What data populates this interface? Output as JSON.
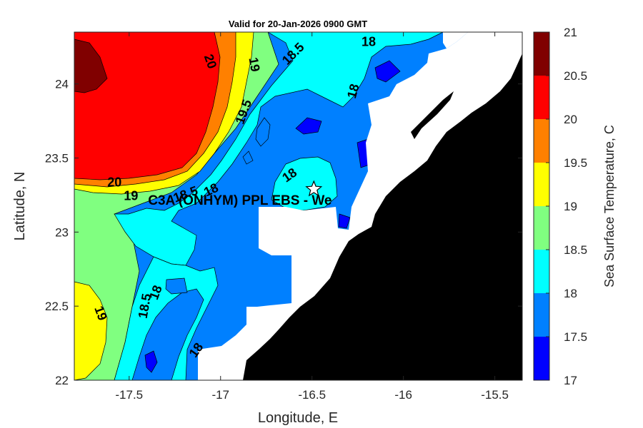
{
  "title": "Valid for 20-Jan-2026 0900 GMT",
  "xlabel": "Longitude, E",
  "ylabel": "Latitude, N",
  "colorbar_label": "Sea Surface Temperature, C",
  "station_label": "C3A (ONHYM) PPL EBS  - We",
  "chart_data": {
    "type": "contour-map",
    "title": "Valid for 20-Jan-2026 0900 GMT",
    "xlim": [
      -17.8,
      -15.35
    ],
    "ylim": [
      22,
      24.35
    ],
    "x_ticks": [
      {
        "v": -17.5,
        "t": "-17.5"
      },
      {
        "v": -17,
        "t": "-17"
      },
      {
        "v": -16.5,
        "t": "-16.5"
      },
      {
        "v": -16,
        "t": "-16"
      },
      {
        "v": -15.5,
        "t": "-15.5"
      }
    ],
    "y_ticks": [
      {
        "v": 22,
        "t": "22"
      },
      {
        "v": 22.5,
        "t": "22.5"
      },
      {
        "v": 23,
        "t": "23"
      },
      {
        "v": 23.5,
        "t": "23.5"
      },
      {
        "v": 24,
        "t": "24"
      }
    ],
    "colorbar": {
      "levels": [
        17,
        17.5,
        18,
        18.5,
        19,
        19.5,
        20,
        20.5,
        21
      ],
      "level_labels": [
        "17",
        "17.5",
        "18",
        "18.5",
        "19",
        "19.5",
        "20",
        "20.5",
        "21"
      ],
      "colors": [
        "#0000ff",
        "#0080ff",
        "#00ffff",
        "#80ff80",
        "#ffff00",
        "#ff8000",
        "#ff0000",
        "#800000"
      ]
    },
    "station": {
      "lon": -16.49,
      "lat": 23.29
    },
    "contour_labels": [
      {
        "t": "20",
        "lon": -17.06,
        "lat": 24.15,
        "rot": 70
      },
      {
        "t": "19",
        "lon": -16.82,
        "lat": 24.13,
        "rot": 80
      },
      {
        "t": "18.5",
        "lon": -16.6,
        "lat": 24.2,
        "rot": -45
      },
      {
        "t": "18",
        "lon": -16.19,
        "lat": 24.28,
        "rot": 0
      },
      {
        "t": "19.5",
        "lon": -16.87,
        "lat": 23.81,
        "rot": -70
      },
      {
        "t": "18",
        "lon": -16.27,
        "lat": 23.95,
        "rot": -75
      },
      {
        "t": "20",
        "lon": -17.58,
        "lat": 23.33,
        "rot": 0
      },
      {
        "t": "19",
        "lon": -17.49,
        "lat": 23.24,
        "rot": 0
      },
      {
        "t": "18.5",
        "lon": -17.19,
        "lat": 23.25,
        "rot": -20
      },
      {
        "t": "18",
        "lon": -17.05,
        "lat": 23.28,
        "rot": -25
      },
      {
        "t": "18",
        "lon": -16.62,
        "lat": 23.38,
        "rot": -35
      },
      {
        "t": "19",
        "lon": -17.66,
        "lat": 22.45,
        "rot": 70
      },
      {
        "t": "18.5",
        "lon": -17.41,
        "lat": 22.5,
        "rot": -80
      },
      {
        "t": "18",
        "lon": -17.35,
        "lat": 22.59,
        "rot": -70
      },
      {
        "t": "18",
        "lon": -17.13,
        "lat": 22.2,
        "rot": -55
      }
    ]
  }
}
